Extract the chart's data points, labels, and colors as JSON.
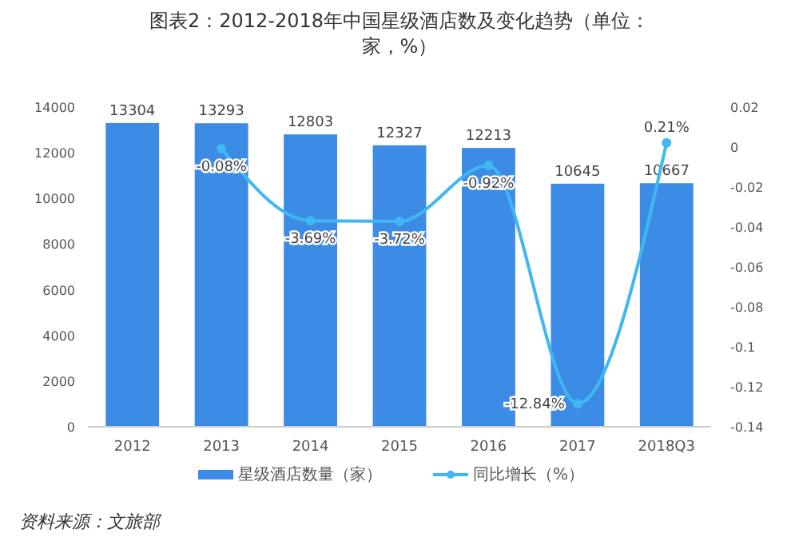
{
  "chart_data": {
    "type": "bar",
    "title": "图表2：2012-2018年中国星级酒店数及变化趋势（单位：家，%）",
    "categories": [
      "2012",
      "2013",
      "2014",
      "2015",
      "2016",
      "2017",
      "2018Q3"
    ],
    "series": [
      {
        "name": "星级酒店数量（家）",
        "color": "#3c8ce6",
        "values": [
          13304,
          13293,
          12803,
          12327,
          12213,
          10645,
          10667
        ]
      },
      {
        "name": "同比增长（%）",
        "type": "line",
        "axis": "y2",
        "color": "#3fb8f2",
        "marker": "circle",
        "values": [
          null,
          -0.0008,
          -0.0369,
          -0.0372,
          -0.0092,
          -0.1284,
          0.0021
        ],
        "value_labels": [
          null,
          "-0.08%",
          "-3.69%",
          "-3.72%",
          "-0.92%",
          "-12.84%",
          "0.21%"
        ]
      }
    ],
    "data_labels": true,
    "ylim": [
      0,
      14000
    ],
    "yticks": [
      0,
      2000,
      4000,
      6000,
      8000,
      10000,
      12000,
      14000
    ],
    "y2lim": [
      -0.14,
      0.02
    ],
    "y2ticks": [
      -0.14,
      -0.12,
      -0.1,
      -0.08,
      -0.06,
      -0.04,
      -0.02,
      0,
      0.02
    ],
    "legend": "bottom",
    "grid": false,
    "annotations": [
      "资料来源：文旅部"
    ]
  }
}
